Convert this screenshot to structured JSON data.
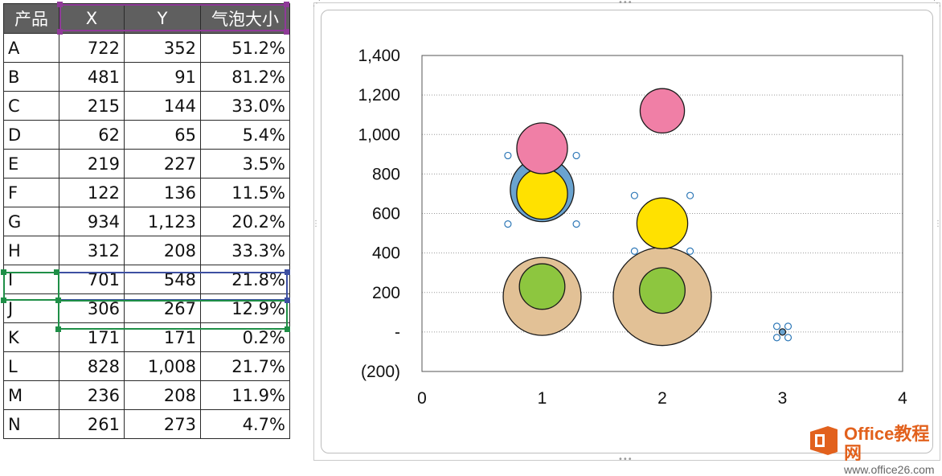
{
  "sheet": {
    "headers": [
      "产品",
      "X",
      "Y",
      "气泡大小"
    ],
    "rows": [
      {
        "name": "A",
        "x": "722",
        "y": "352",
        "size": "51.2%"
      },
      {
        "name": "B",
        "x": "481",
        "y": "91",
        "size": "81.2%"
      },
      {
        "name": "C",
        "x": "215",
        "y": "144",
        "size": "33.0%"
      },
      {
        "name": "D",
        "x": "62",
        "y": "65",
        "size": "5.4%"
      },
      {
        "name": "E",
        "x": "219",
        "y": "227",
        "size": "3.5%"
      },
      {
        "name": "F",
        "x": "122",
        "y": "136",
        "size": "11.5%"
      },
      {
        "name": "G",
        "x": "934",
        "y": "1,123",
        "size": "20.2%"
      },
      {
        "name": "H",
        "x": "312",
        "y": "208",
        "size": "33.3%"
      },
      {
        "name": "I",
        "x": "701",
        "y": "548",
        "size": "21.8%"
      },
      {
        "name": "J",
        "x": "306",
        "y": "267",
        "size": "12.9%"
      },
      {
        "name": "K",
        "x": "171",
        "y": "171",
        "size": "0.2%"
      },
      {
        "name": "L",
        "x": "828",
        "y": "1,008",
        "size": "21.7%"
      },
      {
        "name": "M",
        "x": "236",
        "y": "208",
        "size": "11.9%"
      },
      {
        "name": "N",
        "x": "261",
        "y": "273",
        "size": "4.7%"
      }
    ]
  },
  "chart_data": {
    "type": "scatter",
    "title": "",
    "xlabel": "",
    "ylabel": "",
    "xlim": [
      0,
      4
    ],
    "ylim": [
      -200,
      1400
    ],
    "x_ticks": [
      "0",
      "1",
      "2",
      "3",
      "4"
    ],
    "y_ticks": [
      "(200)",
      "-",
      "200",
      "400",
      "600",
      "800",
      "1,000",
      "1,200",
      "1,400"
    ],
    "y_tick_values": [
      -200,
      0,
      200,
      400,
      600,
      800,
      1000,
      1200,
      1400
    ],
    "gridlines": "horizontal-dotted",
    "bubbles": [
      {
        "x": 1,
        "y": 180,
        "size": 51.2,
        "color": "#e2c196",
        "selected": false
      },
      {
        "x": 2,
        "y": 180,
        "size": 81.2,
        "color": "#e2c196",
        "selected": false
      },
      {
        "x": 1,
        "y": 230,
        "size": 17.5,
        "color": "#8dc63f",
        "selected": false
      },
      {
        "x": 2,
        "y": 210,
        "size": 17.5,
        "color": "#8dc63f",
        "selected": false
      },
      {
        "x": 1,
        "y": 720,
        "size": 34.2,
        "color": "#6aa3cf",
        "selected": true
      },
      {
        "x": 1,
        "y": 700,
        "size": 21.8,
        "color": "#ffe100",
        "selected": false
      },
      {
        "x": 2,
        "y": 550,
        "size": 21.8,
        "color": "#ffe100",
        "selected": true
      },
      {
        "x": 1,
        "y": 930,
        "size": 21.7,
        "color": "#f07fa6",
        "selected": false
      },
      {
        "x": 2,
        "y": 1120,
        "size": 16.6,
        "color": "#f07fa6",
        "selected": false
      },
      {
        "x": 3,
        "y": 0,
        "size": 0.2,
        "color": "#6aa3cf",
        "selected": true
      }
    ]
  },
  "watermark": {
    "name": "Office教程网",
    "url": "www.office26.com"
  }
}
